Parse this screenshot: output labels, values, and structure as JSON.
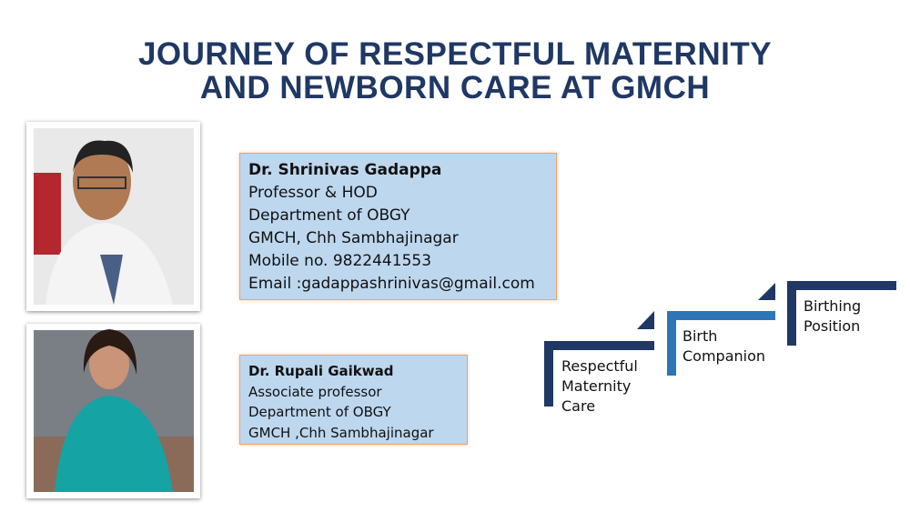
{
  "title": [
    "JOURNEY OF RESPECTFUL MATERNITY",
    "AND NEWBORN CARE AT GMCH"
  ],
  "people": [
    {
      "name": "Dr. Shrinivas Gadappa",
      "lines": [
        "Professor & HOD",
        "Department of OBGY",
        "GMCH, Chh Sambhajinagar",
        "Mobile no. 9822441553",
        "Email :gadappashrinivas@gmail.com"
      ]
    },
    {
      "name": "Dr. Rupali Gaikwad",
      "lines": [
        "Associate professor",
        "Department of OBGY",
        "GMCH ,Chh Sambhajinagar"
      ]
    }
  ],
  "steps": [
    {
      "lines": [
        "Respectful",
        "Maternity",
        "Care"
      ]
    },
    {
      "lines": [
        "Birth",
        "Companion"
      ]
    },
    {
      "lines": [
        "Birthing",
        "Position"
      ]
    }
  ]
}
